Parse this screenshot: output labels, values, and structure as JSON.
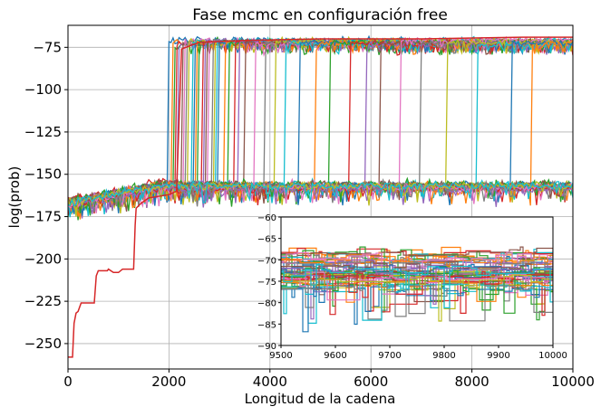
{
  "chart_data": [
    {
      "id": "main",
      "type": "line",
      "title": "Fase mcmc en configuración free",
      "xlabel": "Longitud de la cadena",
      "ylabel": "log(prob)",
      "xlim": [
        0,
        10000
      ],
      "ylim": [
        -265,
        -62
      ],
      "xticks": [
        0,
        2000,
        4000,
        6000,
        8000,
        10000
      ],
      "xtick_labels": [
        "0",
        "2000",
        "4000",
        "6000",
        "8000",
        "10000"
      ],
      "yticks": [
        -75,
        -100,
        -125,
        -150,
        -175,
        -200,
        -225,
        -250
      ],
      "ytick_labels": [
        "−75",
        "−100",
        "−125",
        "−150",
        "−175",
        "−200",
        "−225",
        "−250"
      ],
      "grid": true,
      "n_walkers_approx": 60,
      "walker_groups": {
        "upper_band": {
          "y_mean": -72,
          "y_range": [
            -80,
            -68
          ]
        },
        "lower_band": {
          "y_mean": -157,
          "y_range": [
            -178,
            -150
          ]
        }
      },
      "transition_steps": [
        2000,
        2050,
        2100,
        2150,
        2200,
        2250,
        2300,
        2350,
        2400,
        2450,
        2500,
        2550,
        2600,
        2650,
        2700,
        2750,
        2800,
        2850,
        2900,
        2950,
        3000,
        3100,
        3200,
        3300,
        3400,
        3500,
        3700,
        3900,
        4100,
        4300,
        4600,
        4900,
        5200,
        5600,
        5900,
        6200,
        6600,
        7000,
        7500,
        8100,
        8800,
        9200
      ],
      "series": [
        {
          "color": "#d62728",
          "points": [
            [
              0,
              -258
            ],
            [
              90,
              -258
            ],
            [
              120,
              -238
            ],
            [
              160,
              -232
            ],
            [
              200,
              -231
            ],
            [
              260,
              -226
            ],
            [
              520,
              -226
            ],
            [
              560,
              -210
            ],
            [
              600,
              -207
            ],
            [
              780,
              -207
            ],
            [
              800,
              -206
            ],
            [
              900,
              -208
            ],
            [
              1000,
              -208
            ],
            [
              1080,
              -206
            ],
            [
              1300,
              -206
            ],
            [
              1330,
              -180
            ],
            [
              1350,
              -170
            ],
            [
              1450,
              -167
            ],
            [
              1600,
              -164
            ],
            [
              2000,
              -162
            ],
            [
              2150,
              -160
            ],
            [
              2250,
              -76
            ],
            [
              2600,
              -72
            ],
            [
              3500,
              -71
            ],
            [
              5000,
              -70
            ],
            [
              7000,
              -70
            ],
            [
              9000,
              -69
            ],
            [
              10000,
              -69
            ]
          ]
        }
      ]
    },
    {
      "id": "inset",
      "type": "line",
      "xlim": [
        9500,
        10000
      ],
      "ylim": [
        -90,
        -60
      ],
      "xticks": [
        9500,
        9600,
        9700,
        9800,
        9900,
        10000
      ],
      "xtick_labels": [
        "9500",
        "9600",
        "9700",
        "9800",
        "9900",
        "10000"
      ],
      "yticks": [
        -60,
        -65,
        -70,
        -75,
        -80,
        -85,
        -90
      ],
      "ytick_labels": [
        "−60",
        "−65",
        "−70",
        "−75",
        "−80",
        "−85",
        "−90"
      ],
      "grid": false,
      "walker_band": {
        "y_range": [
          -84,
          -67
        ]
      }
    }
  ],
  "colors": [
    "#1f77b4",
    "#ff7f0e",
    "#2ca02c",
    "#d62728",
    "#9467bd",
    "#8c564b",
    "#e377c2",
    "#7f7f7f",
    "#bcbd22",
    "#17becf"
  ]
}
